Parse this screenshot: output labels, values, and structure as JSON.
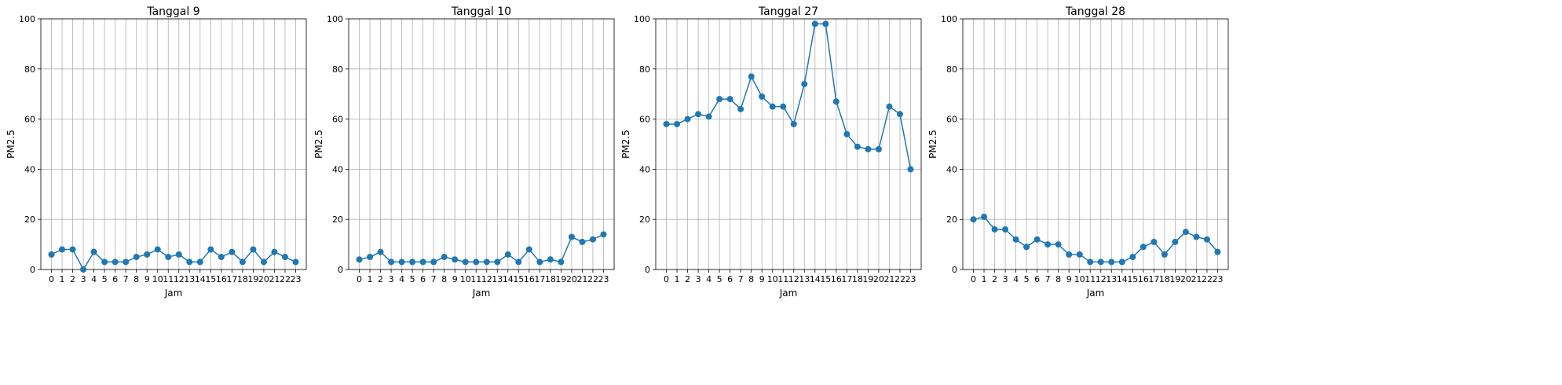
{
  "figure": {
    "line_color": "#1f77b4",
    "grid_color": "#b0b0b0"
  },
  "chart_data": [
    {
      "type": "line",
      "title": "Tanggal 9",
      "xlabel": "Jam",
      "ylabel": "PM2.5",
      "x": [
        0,
        1,
        2,
        3,
        4,
        5,
        6,
        7,
        8,
        9,
        10,
        11,
        12,
        13,
        14,
        15,
        16,
        17,
        18,
        19,
        20,
        21,
        22,
        23
      ],
      "x_tick_labels": [
        "0",
        "1",
        "2",
        "3",
        "4",
        "5",
        "6",
        "7",
        "8",
        "9",
        "10",
        "11",
        "12",
        "13",
        "14",
        "15",
        "16",
        "17",
        "18",
        "19",
        "20",
        "21",
        "22",
        "23"
      ],
      "y_ticks": [
        "0",
        "20",
        "40",
        "60",
        "80",
        "100"
      ],
      "ylim": [
        0,
        100
      ],
      "grid": true,
      "marker": "circle",
      "series": [
        {
          "values": [
            6,
            8,
            8,
            0,
            7,
            3,
            3,
            3,
            5,
            6,
            8,
            5,
            6,
            3,
            3,
            8,
            5,
            7,
            3,
            8,
            3,
            7,
            5,
            3
          ]
        }
      ]
    },
    {
      "type": "line",
      "title": "Tanggal 10",
      "xlabel": "Jam",
      "ylabel": "PM2.5",
      "x": [
        0,
        1,
        2,
        3,
        4,
        5,
        6,
        7,
        8,
        9,
        10,
        11,
        12,
        13,
        14,
        15,
        16,
        17,
        18,
        19,
        20,
        21,
        22,
        23
      ],
      "x_tick_labels": [
        "0",
        "1",
        "2",
        "3",
        "4",
        "5",
        "6",
        "7",
        "8",
        "9",
        "10",
        "11",
        "12",
        "13",
        "14",
        "15",
        "16",
        "17",
        "18",
        "19",
        "20",
        "21",
        "22",
        "23"
      ],
      "y_ticks": [
        "0",
        "20",
        "40",
        "60",
        "80",
        "100"
      ],
      "ylim": [
        0,
        100
      ],
      "grid": true,
      "marker": "circle",
      "series": [
        {
          "values": [
            4,
            5,
            7,
            3,
            3,
            3,
            3,
            3,
            5,
            4,
            3,
            3,
            3,
            3,
            6,
            3,
            8,
            3,
            4,
            3,
            13,
            11,
            12,
            14
          ]
        }
      ]
    },
    {
      "type": "line",
      "title": "Tanggal 27",
      "xlabel": "Jam",
      "ylabel": "PM2.5",
      "x": [
        0,
        1,
        2,
        3,
        4,
        5,
        6,
        7,
        8,
        9,
        10,
        11,
        12,
        13,
        14,
        15,
        16,
        17,
        18,
        19,
        20,
        21,
        22,
        23
      ],
      "x_tick_labels": [
        "0",
        "1",
        "2",
        "3",
        "4",
        "5",
        "6",
        "7",
        "8",
        "9",
        "10",
        "11",
        "12",
        "13",
        "14",
        "15",
        "16",
        "17",
        "18",
        "19",
        "20",
        "21",
        "22",
        "23"
      ],
      "y_ticks": [
        "0",
        "20",
        "40",
        "60",
        "80",
        "100"
      ],
      "ylim": [
        0,
        100
      ],
      "grid": true,
      "marker": "circle",
      "series": [
        {
          "values": [
            58,
            58,
            60,
            62,
            61,
            68,
            68,
            64,
            77,
            69,
            65,
            65,
            58,
            74,
            98,
            98,
            67,
            54,
            49,
            48,
            48,
            65,
            62,
            40
          ]
        }
      ]
    },
    {
      "type": "line",
      "title": "Tanggal 28",
      "xlabel": "Jam",
      "ylabel": "PM2.5",
      "x": [
        0,
        1,
        2,
        3,
        4,
        5,
        6,
        7,
        8,
        9,
        10,
        11,
        12,
        13,
        14,
        15,
        16,
        17,
        18,
        19,
        20,
        21,
        22,
        23
      ],
      "x_tick_labels": [
        "0",
        "1",
        "2",
        "3",
        "4",
        "5",
        "6",
        "7",
        "8",
        "9",
        "10",
        "11",
        "12",
        "13",
        "14",
        "15",
        "16",
        "17",
        "18",
        "19",
        "20",
        "21",
        "22",
        "23"
      ],
      "y_ticks": [
        "0",
        "20",
        "40",
        "60",
        "80",
        "100"
      ],
      "ylim": [
        0,
        100
      ],
      "grid": true,
      "marker": "circle",
      "series": [
        {
          "values": [
            20,
            21,
            16,
            16,
            12,
            9,
            12,
            10,
            10,
            6,
            6,
            3,
            3,
            3,
            3,
            5,
            9,
            11,
            6,
            11,
            15,
            13,
            12,
            7
          ]
        }
      ]
    }
  ]
}
